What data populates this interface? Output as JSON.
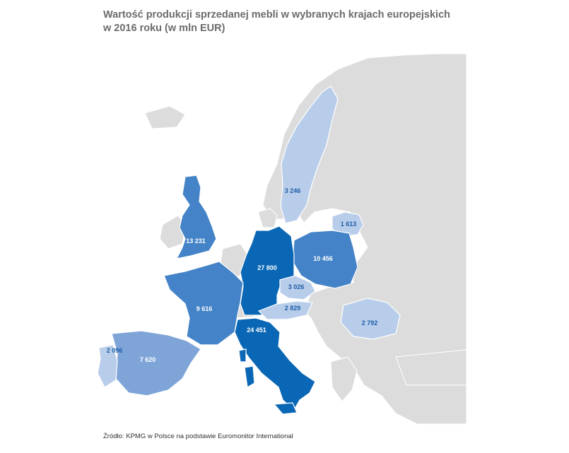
{
  "title": {
    "line1": "Wartość produkcji sprzedanej mebli w wybranych krajach europejskich",
    "line2": "w 2016 roku (w mln EUR)"
  },
  "colors": {
    "background_land": "#dcdcdc",
    "water": "#ffffff",
    "tier_high": "#0a67b5",
    "tier_mid": "#4483c7",
    "tier_low": "#7fa5d8",
    "tier_min": "#b8cdea",
    "label_light": "#ffffff",
    "label_dark": "#1f5ea8"
  },
  "countries": [
    {
      "id": "germany",
      "value": "27 800"
    },
    {
      "id": "italy",
      "value": "24 451"
    },
    {
      "id": "uk",
      "value": "13 231"
    },
    {
      "id": "poland",
      "value": "10 456"
    },
    {
      "id": "france",
      "value": "9 616"
    },
    {
      "id": "spain",
      "value": "7 620"
    },
    {
      "id": "sweden",
      "value": "3 246"
    },
    {
      "id": "czech",
      "value": "3 026"
    },
    {
      "id": "austria",
      "value": "2 829"
    },
    {
      "id": "romania",
      "value": "2 792"
    },
    {
      "id": "portugal",
      "value": "2 096"
    },
    {
      "id": "lithuania",
      "value": "1 613"
    }
  ],
  "source": "Źródło: KPMG w Polsce na podstawie Euromonitor International"
}
